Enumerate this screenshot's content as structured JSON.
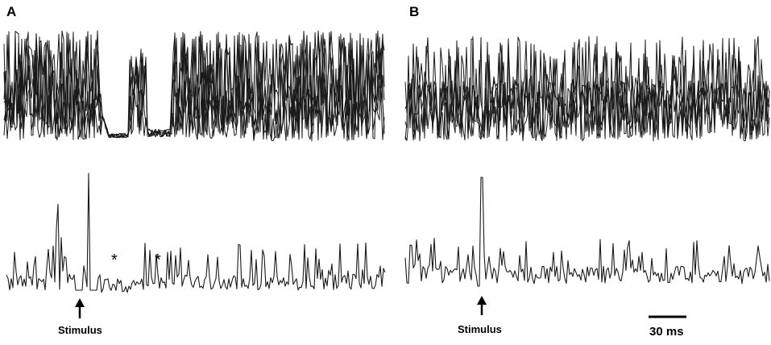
{
  "panels": {
    "a": {
      "label": "A"
    },
    "b": {
      "label": "B"
    }
  },
  "annotations": {
    "stimulus_a": "Stimulus",
    "stimulus_b": "Stimulus",
    "asterisk_1": "*",
    "asterisk_2": "*",
    "scale_bar": "30 ms"
  },
  "colors": {
    "trace": "#1a1a1a",
    "arrow": "#000000"
  },
  "icons": {
    "stimulus_marker": "up-arrow-icon"
  }
}
